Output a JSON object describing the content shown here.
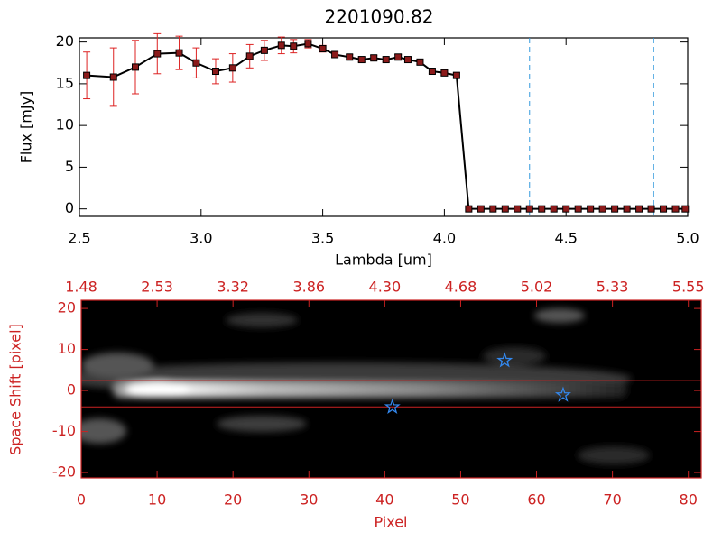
{
  "chart_data": [
    {
      "type": "line",
      "title": "2201090.82",
      "xlabel": "Lambda [um]",
      "ylabel": "Flux [mJy]",
      "x": [
        2.53,
        2.64,
        2.73,
        2.82,
        2.91,
        2.98,
        3.06,
        3.13,
        3.2,
        3.26,
        3.33,
        3.38,
        3.44,
        3.5,
        3.55,
        3.61,
        3.66,
        3.71,
        3.76,
        3.81,
        3.85,
        3.9,
        3.95,
        4.0,
        4.05,
        4.1,
        4.15,
        4.2,
        4.25,
        4.3,
        4.35,
        4.4,
        4.45,
        4.5,
        4.55,
        4.6,
        4.65,
        4.7,
        4.75,
        4.8,
        4.85,
        4.9,
        4.95,
        4.99
      ],
      "values": [
        16.0,
        15.8,
        17.0,
        18.6,
        18.7,
        17.5,
        16.5,
        16.9,
        18.3,
        19.0,
        19.6,
        19.5,
        19.8,
        19.2,
        18.5,
        18.2,
        17.9,
        18.1,
        17.9,
        18.2,
        17.9,
        17.6,
        16.5,
        16.3,
        16.0,
        0,
        0,
        0,
        0,
        0,
        0,
        0,
        0,
        0,
        0,
        0,
        0,
        0,
        0,
        0,
        0,
        0,
        0,
        0
      ],
      "errors": [
        2.8,
        3.5,
        3.2,
        2.4,
        2.0,
        1.8,
        1.5,
        1.7,
        1.4,
        1.2,
        1.0,
        0.8,
        0.5,
        0.4,
        0.3,
        0.3,
        0.3,
        0.3,
        0.3,
        0.3,
        0.3,
        0.3,
        0.3,
        0.3,
        0.3,
        null,
        null,
        null,
        null,
        null,
        null,
        null,
        null,
        null,
        null,
        null,
        null,
        null,
        null,
        null,
        null,
        null,
        null,
        null
      ],
      "color": "#000000",
      "marker_color": "#8b1a1a",
      "error_color": "#dd2222",
      "xlim": [
        2.5,
        5.0
      ],
      "ylim": [
        -0.9,
        20.5
      ],
      "xticks": [
        2.5,
        {
          "value": 3,
          "label": "3.0"
        },
        3.5,
        {
          "value": 4,
          "label": "4.0"
        },
        4.5,
        {
          "value": 5,
          "label": "5.0"
        }
      ],
      "yticks": [
        0,
        5,
        10,
        15,
        20
      ],
      "vlines": [
        4.35,
        4.86
      ],
      "vline_color": "#3399dd"
    },
    {
      "type": "image",
      "xlabel": "Pixel",
      "ylabel": "Space Shift [pixel]",
      "color": "#cc2222",
      "xlim": [
        0,
        81.7
      ],
      "ylim": [
        -21.3,
        22
      ],
      "xticks": [
        0,
        10,
        20,
        30,
        40,
        50,
        60,
        70,
        80
      ],
      "x2ticks": [
        {
          "value": 0,
          "label": "1.48"
        },
        {
          "value": 10,
          "label": "2.53"
        },
        {
          "value": 20,
          "label": "3.32"
        },
        {
          "value": 30,
          "label": "3.86"
        },
        {
          "value": 40,
          "label": "4.30"
        },
        {
          "value": 50,
          "label": "4.68"
        },
        {
          "value": 60,
          "label": "5.02"
        },
        {
          "value": 70,
          "label": "5.33"
        },
        {
          "value": 80,
          "label": "5.55"
        }
      ],
      "yticks": [
        -20,
        -10,
        0,
        10,
        20
      ],
      "hlines": [
        2.4,
        -4.0
      ],
      "stars": {
        "x": [
          41.0,
          55.8,
          63.5
        ],
        "y": [
          -4.0,
          7.3,
          -1.1
        ],
        "color": "#3388ee"
      }
    }
  ]
}
